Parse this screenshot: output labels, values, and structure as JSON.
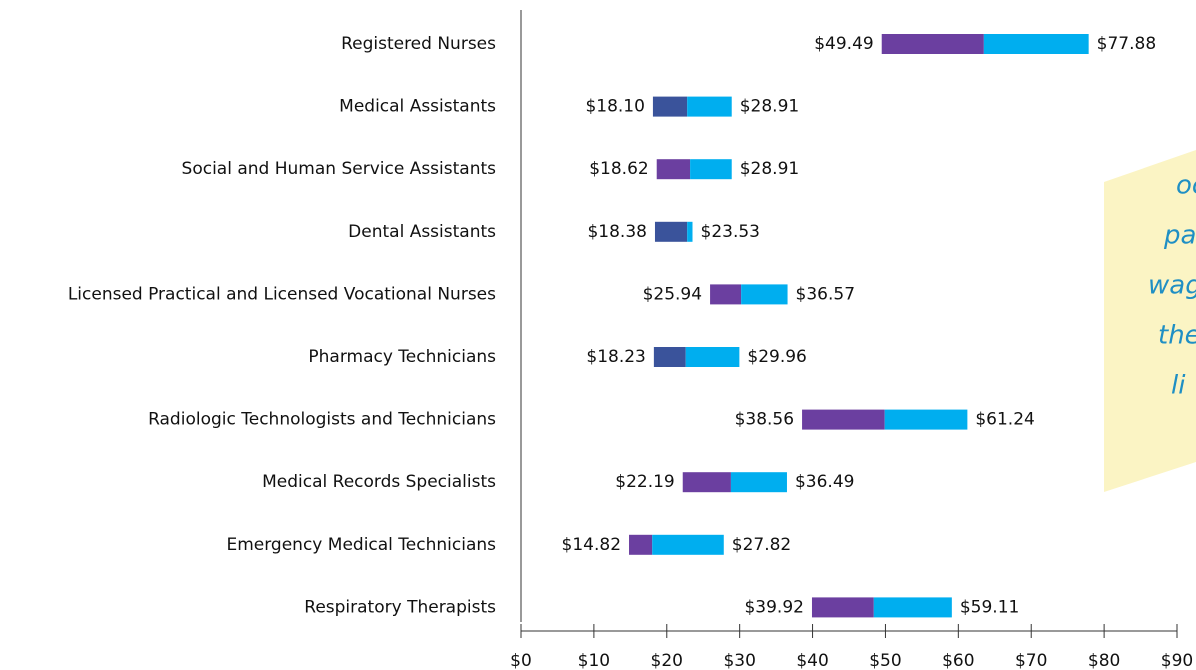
{
  "chart_data": {
    "type": "range_bar",
    "categories": [
      "Registered Nurses",
      "Medical Assistants",
      "Social and Human Service Assistants",
      "Dental Assistants",
      "Licensed Practical and Licensed Vocational Nurses",
      "Pharmacy Technicians",
      "Radiologic Technologists and Technicians",
      "Medical Records Specialists",
      "Emergency Medical Technicians",
      "Respiratory Therapists"
    ],
    "low": [
      49.49,
      18.1,
      18.62,
      18.38,
      25.94,
      18.23,
      38.56,
      22.19,
      14.82,
      39.92
    ],
    "low_labels": [
      "$49.49",
      "$18.10",
      "$18.62",
      "$18.38",
      "$25.94",
      "$18.23",
      "$38.56",
      "$22.19",
      "$14.82",
      "$39.92"
    ],
    "mid": [
      63.5,
      22.8,
      23.2,
      22.8,
      30.2,
      22.6,
      49.9,
      28.8,
      18.0,
      48.4
    ],
    "high": [
      77.88,
      28.91,
      28.91,
      23.53,
      36.57,
      29.96,
      61.24,
      36.49,
      27.82,
      59.11
    ],
    "high_labels": [
      "$77.88",
      "$28.91",
      "$28.91",
      "$23.53",
      "$36.57",
      "$29.96",
      "$61.24",
      "$36.49",
      "$27.82",
      "$59.11"
    ],
    "low_colors": [
      "#6b3fa0",
      "#3a539b",
      "#6b3fa0",
      "#3a539b",
      "#6b3fa0",
      "#3a539b",
      "#6b3fa0",
      "#6b3fa0",
      "#6b3fa0",
      "#6b3fa0"
    ],
    "high_color": "#00aeef",
    "xlim": [
      0,
      90
    ],
    "xticks": [
      {
        "value": 0,
        "label": "$0"
      },
      {
        "value": 10,
        "label": "$10"
      },
      {
        "value": 20,
        "label": "$20"
      },
      {
        "value": 30,
        "label": "$30"
      },
      {
        "value": 40,
        "label": "$40"
      },
      {
        "value": 50,
        "label": "$50"
      },
      {
        "value": 60,
        "label": "$60"
      },
      {
        "value": 70,
        "label": "$70"
      },
      {
        "value": 80,
        "label": "$80"
      },
      {
        "value": 90,
        "label": "$90"
      }
    ],
    "annotation": [
      "oc",
      "pa",
      "wag",
      "the",
      "li"
    ]
  }
}
